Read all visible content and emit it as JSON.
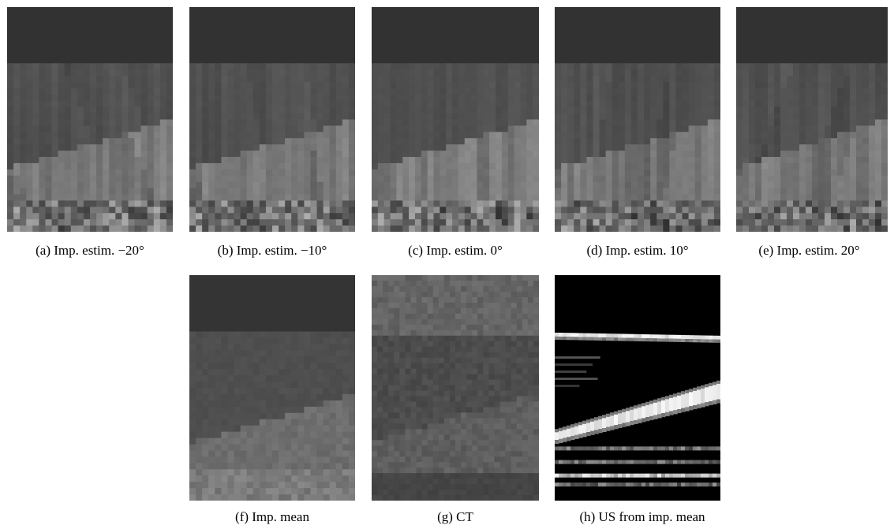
{
  "figure": {
    "panels": [
      {
        "id": "a",
        "caption": "(a) Imp. estim. −20°",
        "kind": "estimate",
        "angle": -20
      },
      {
        "id": "b",
        "caption": "(b) Imp. estim. −10°",
        "kind": "estimate",
        "angle": -10
      },
      {
        "id": "c",
        "caption": "(c) Imp. estim. 0°",
        "kind": "estimate",
        "angle": 0
      },
      {
        "id": "d",
        "caption": "(d) Imp. estim. 10°",
        "kind": "estimate",
        "angle": 10
      },
      {
        "id": "e",
        "caption": "(e) Imp. estim. 20°",
        "kind": "estimate",
        "angle": 20
      },
      {
        "id": "f",
        "caption": "(f) Imp. mean",
        "kind": "mean"
      },
      {
        "id": "g",
        "caption": "(g) CT",
        "kind": "ct"
      },
      {
        "id": "h",
        "caption": "(h) US from imp. mean",
        "kind": "us"
      }
    ]
  }
}
